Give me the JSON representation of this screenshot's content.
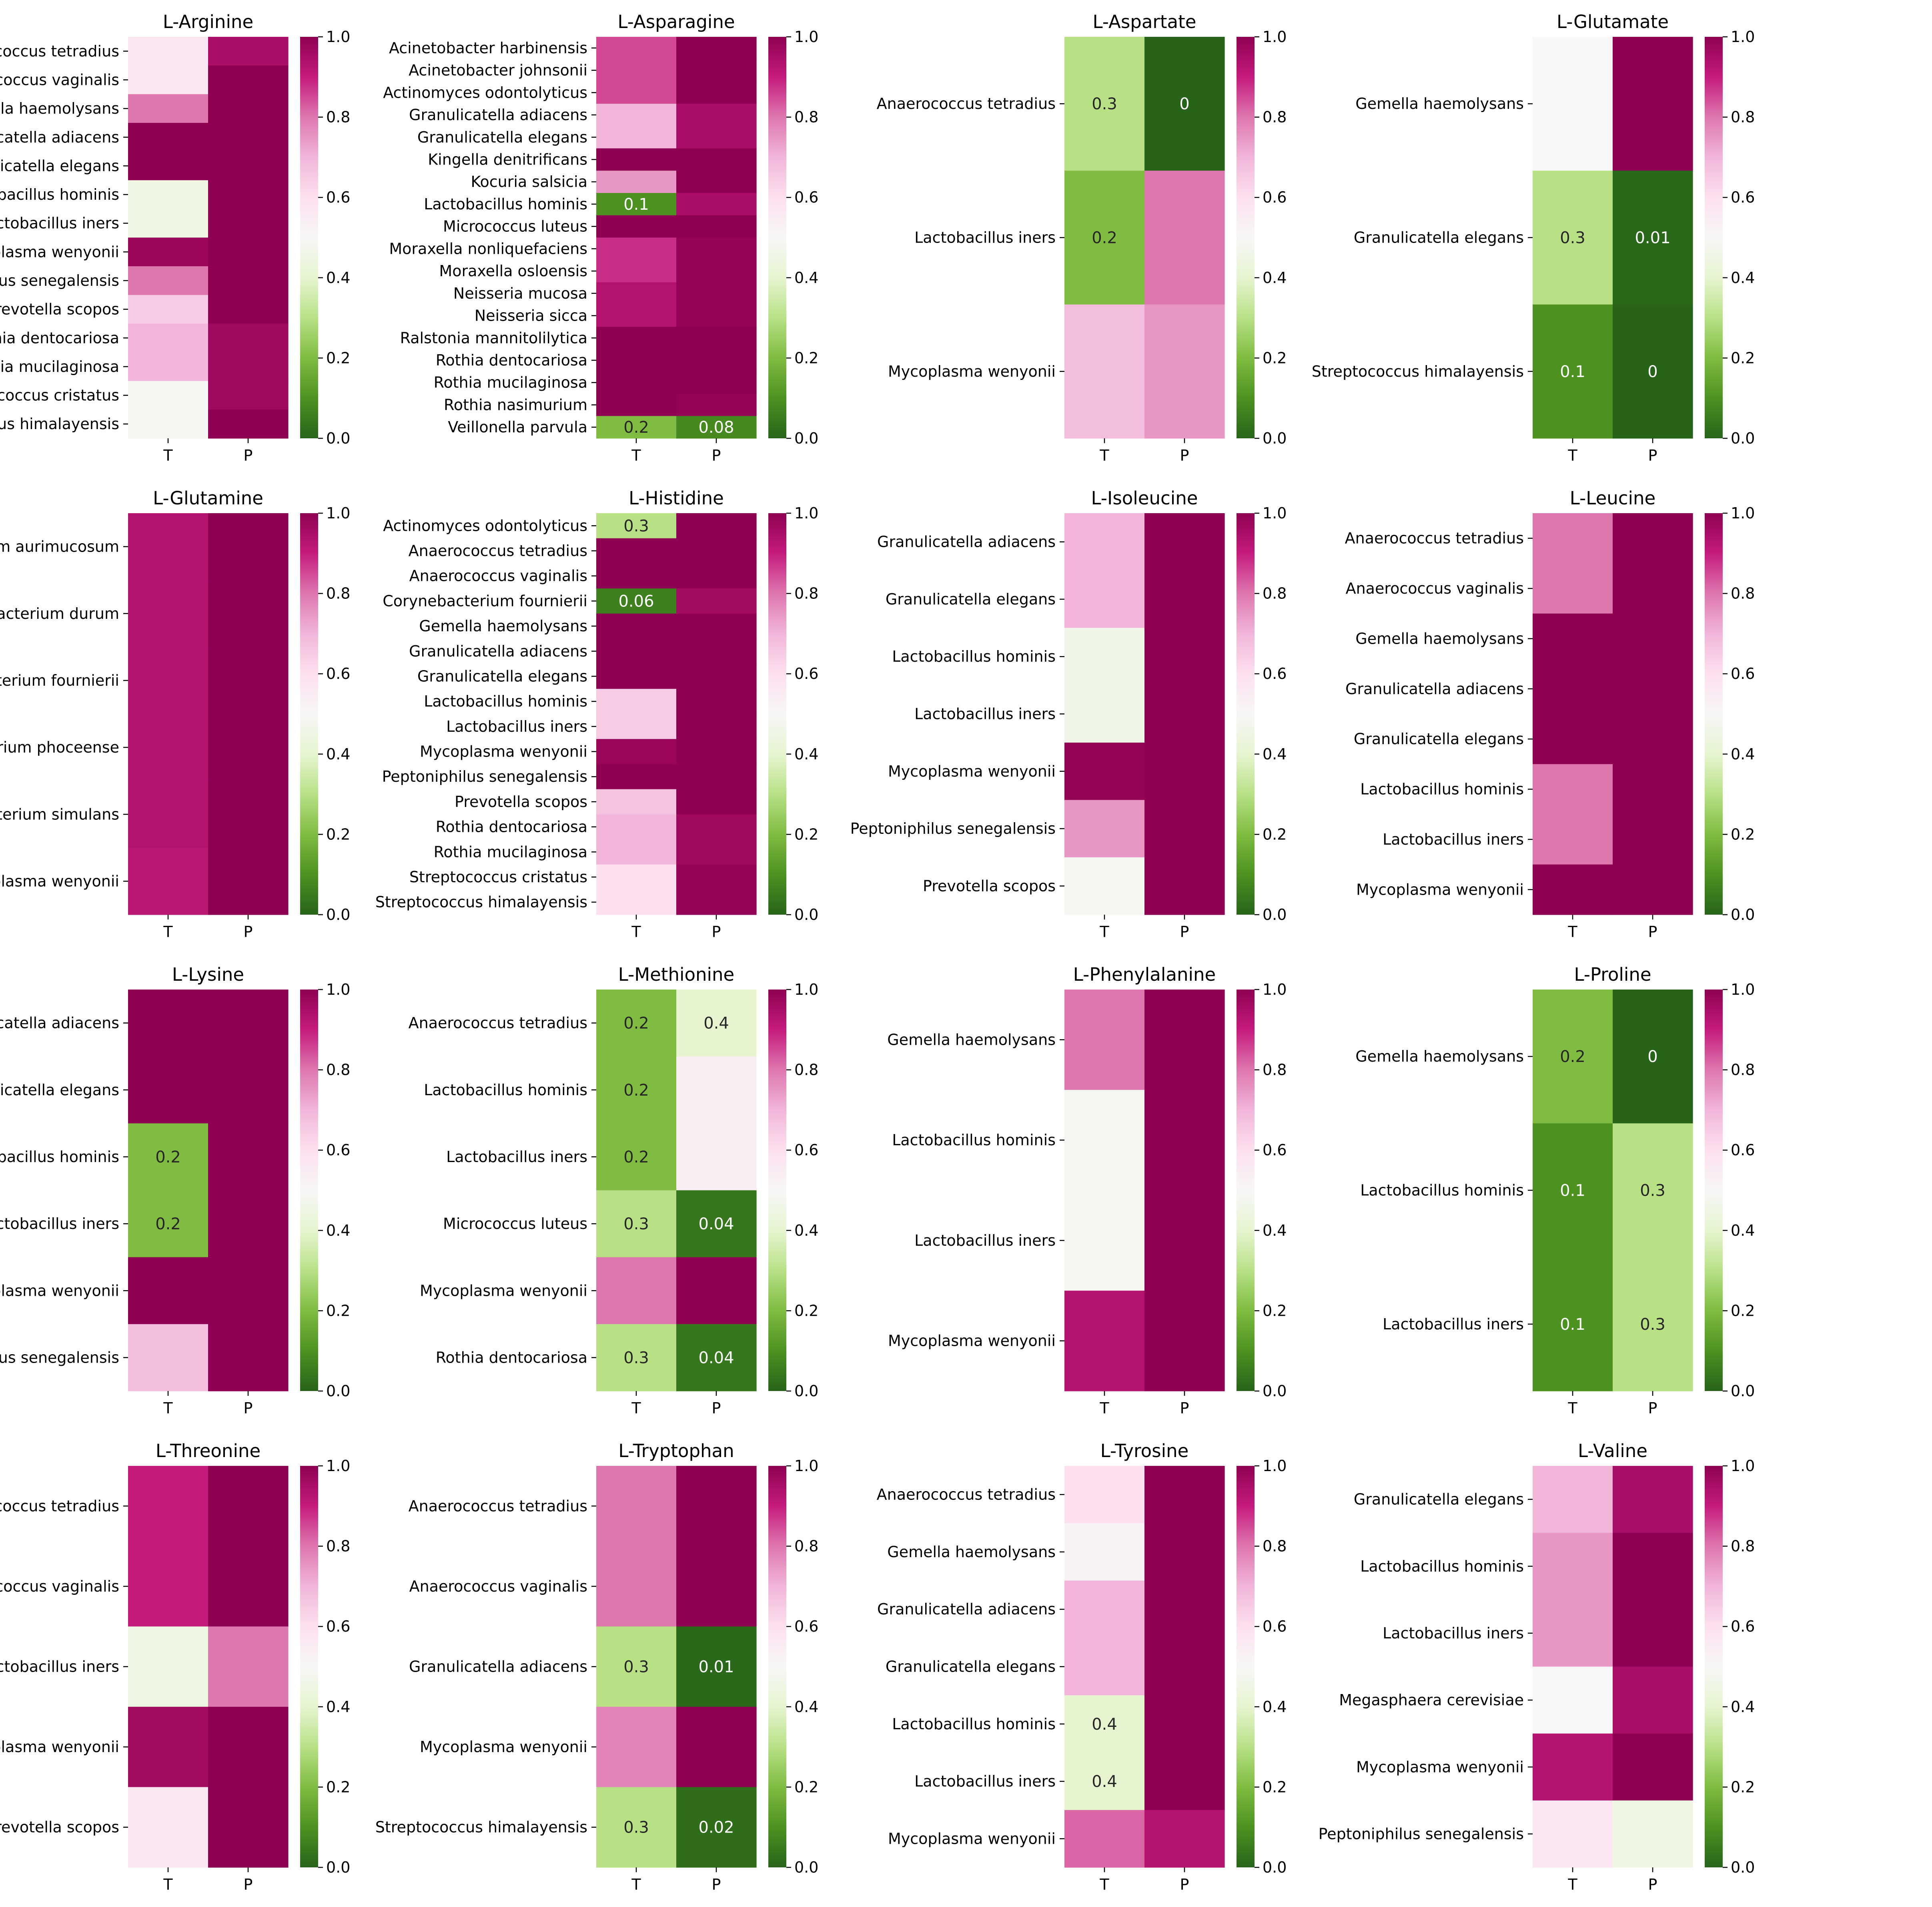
{
  "chart_data": [
    {
      "type": "heatmap",
      "title": "L-Arginine",
      "columns": [
        "T",
        "P"
      ],
      "rows": [
        "Anaerococcus tetradius",
        "Anaerococcus vaginalis",
        "Gemella haemolysans",
        "Granulicatella adiacens",
        "Granulicatella elegans",
        "Lactobacillus hominis",
        "Lactobacillus iners",
        "Mycoplasma wenyonii",
        "Peptoniphilus senegalensis",
        "Prevotella scopos",
        "Rothia dentocariosa",
        "Rothia mucilaginosa",
        "Streptococcus cristatus",
        "Streptococcus himalayensis"
      ],
      "values": [
        [
          0.57,
          0.95
        ],
        [
          0.57,
          1.0
        ],
        [
          0.8,
          1.0
        ],
        [
          1.0,
          1.0
        ],
        [
          1.0,
          1.0
        ],
        [
          0.45,
          1.0
        ],
        [
          0.45,
          1.0
        ],
        [
          0.98,
          1.0
        ],
        [
          0.8,
          1.0
        ],
        [
          0.65,
          1.0
        ],
        [
          0.7,
          0.97
        ],
        [
          0.7,
          0.97
        ],
        [
          0.49,
          0.97
        ],
        [
          0.49,
          1.0
        ]
      ],
      "annotations": [],
      "colorbar": {
        "min": 0.0,
        "max": 1.0,
        "ticks": [
          "0.0",
          "0.2",
          "0.4",
          "0.6",
          "0.8",
          "1.0"
        ]
      }
    },
    {
      "type": "heatmap",
      "title": "L-Asparagine",
      "columns": [
        "T",
        "P"
      ],
      "rows": [
        "Acinetobacter harbinensis",
        "Acinetobacter johnsonii",
        "Actinomyces odontolyticus",
        "Granulicatella adiacens",
        "Granulicatella elegans",
        "Kingella denitrificans",
        "Kocuria salsicia",
        "Lactobacillus hominis",
        "Micrococcus luteus",
        "Moraxella nonliquefaciens",
        "Moraxella osloensis",
        "Neisseria mucosa",
        "Neisseria sicca",
        "Ralstonia mannitolilytica",
        "Rothia dentocariosa",
        "Rothia mucilaginosa",
        "Rothia nasimurium",
        "Veillonella parvula"
      ],
      "values": [
        [
          0.85,
          1.0
        ],
        [
          0.85,
          1.0
        ],
        [
          0.85,
          1.0
        ],
        [
          0.7,
          0.95
        ],
        [
          0.7,
          0.95
        ],
        [
          1.0,
          1.0
        ],
        [
          0.75,
          1.0
        ],
        [
          0.1,
          0.95
        ],
        [
          1.0,
          1.0
        ],
        [
          0.88,
          0.99
        ],
        [
          0.88,
          0.99
        ],
        [
          0.93,
          0.99
        ],
        [
          0.93,
          0.99
        ],
        [
          1.0,
          1.0
        ],
        [
          1.0,
          1.0
        ],
        [
          1.0,
          1.0
        ],
        [
          1.0,
          0.99
        ],
        [
          0.2,
          0.08
        ]
      ],
      "annotations": [
        {
          "row": 7,
          "col": 0,
          "text": "0.1"
        },
        {
          "row": 17,
          "col": 0,
          "text": "0.2"
        },
        {
          "row": 17,
          "col": 1,
          "text": "0.08"
        }
      ],
      "colorbar": {
        "min": 0.0,
        "max": 1.0,
        "ticks": [
          "0.0",
          "0.2",
          "0.4",
          "0.6",
          "0.8",
          "1.0"
        ]
      }
    },
    {
      "type": "heatmap",
      "title": "L-Aspartate",
      "columns": [
        "T",
        "P"
      ],
      "rows": [
        "Anaerococcus tetradius",
        "Lactobacillus iners",
        "Mycoplasma wenyonii"
      ],
      "values": [
        [
          0.3,
          0.0
        ],
        [
          0.2,
          0.8
        ],
        [
          0.68,
          0.75
        ]
      ],
      "annotations": [
        {
          "row": 0,
          "col": 0,
          "text": "0.3"
        },
        {
          "row": 0,
          "col": 1,
          "text": "0"
        },
        {
          "row": 1,
          "col": 0,
          "text": "0.2"
        }
      ],
      "colorbar": {
        "min": 0.0,
        "max": 1.0,
        "ticks": [
          "0.0",
          "0.2",
          "0.4",
          "0.6",
          "0.8",
          "1.0"
        ]
      }
    },
    {
      "type": "heatmap",
      "title": "L-Glutamate",
      "columns": [
        "T",
        "P"
      ],
      "rows": [
        "Gemella haemolysans",
        "Granulicatella elegans",
        "Streptococcus himalayensis"
      ],
      "values": [
        [
          0.5,
          1.0
        ],
        [
          0.3,
          0.01
        ],
        [
          0.1,
          0.0
        ]
      ],
      "annotations": [
        {
          "row": 1,
          "col": 0,
          "text": "0.3"
        },
        {
          "row": 1,
          "col": 1,
          "text": "0.01"
        },
        {
          "row": 2,
          "col": 0,
          "text": "0.1"
        },
        {
          "row": 2,
          "col": 1,
          "text": "0"
        }
      ],
      "colorbar": {
        "min": 0.0,
        "max": 1.0,
        "ticks": [
          "0.0",
          "0.2",
          "0.4",
          "0.6",
          "0.8",
          "1.0"
        ]
      }
    },
    {
      "type": "heatmap",
      "title": "L-Glutamine",
      "columns": [
        "T",
        "P"
      ],
      "rows": [
        "Corynebacterium aurimucosum",
        "Corynebacterium durum",
        "Corynebacterium fournierii",
        "Corynebacterium phoceense",
        "Corynebacterium simulans",
        "Mycoplasma wenyonii"
      ],
      "values": [
        [
          0.93,
          1.0
        ],
        [
          0.93,
          1.0
        ],
        [
          0.93,
          1.0
        ],
        [
          0.93,
          1.0
        ],
        [
          0.93,
          1.0
        ],
        [
          0.92,
          1.0
        ]
      ],
      "annotations": [],
      "colorbar": {
        "min": 0.0,
        "max": 1.0,
        "ticks": [
          "0.0",
          "0.2",
          "0.4",
          "0.6",
          "0.8",
          "1.0"
        ]
      }
    },
    {
      "type": "heatmap",
      "title": "L-Histidine",
      "columns": [
        "T",
        "P"
      ],
      "rows": [
        "Actinomyces odontolyticus",
        "Anaerococcus tetradius",
        "Anaerococcus vaginalis",
        "Corynebacterium fournierii",
        "Gemella haemolysans",
        "Granulicatella adiacens",
        "Granulicatella elegans",
        "Lactobacillus hominis",
        "Lactobacillus iners",
        "Mycoplasma wenyonii",
        "Peptoniphilus senegalensis",
        "Prevotella scopos",
        "Rothia dentocariosa",
        "Rothia mucilaginosa",
        "Streptococcus cristatus",
        "Streptococcus himalayensis"
      ],
      "values": [
        [
          0.3,
          1.0
        ],
        [
          1.0,
          1.0
        ],
        [
          1.0,
          1.0
        ],
        [
          0.06,
          0.96
        ],
        [
          1.0,
          1.0
        ],
        [
          1.0,
          1.0
        ],
        [
          1.0,
          1.0
        ],
        [
          0.65,
          1.0
        ],
        [
          0.65,
          1.0
        ],
        [
          0.98,
          1.0
        ],
        [
          1.0,
          1.0
        ],
        [
          0.67,
          1.0
        ],
        [
          0.7,
          0.97
        ],
        [
          0.7,
          0.97
        ],
        [
          0.6,
          0.99
        ],
        [
          0.6,
          0.99
        ]
      ],
      "annotations": [
        {
          "row": 0,
          "col": 0,
          "text": "0.3"
        },
        {
          "row": 3,
          "col": 0,
          "text": "0.06"
        }
      ],
      "colorbar": {
        "min": 0.0,
        "max": 1.0,
        "ticks": [
          "0.0",
          "0.2",
          "0.4",
          "0.6",
          "0.8",
          "1.0"
        ]
      }
    },
    {
      "type": "heatmap",
      "title": "L-Isoleucine",
      "columns": [
        "T",
        "P"
      ],
      "rows": [
        "Granulicatella adiacens",
        "Granulicatella elegans",
        "Lactobacillus hominis",
        "Lactobacillus iners",
        "Mycoplasma wenyonii",
        "Peptoniphilus senegalensis",
        "Prevotella scopos"
      ],
      "values": [
        [
          0.7,
          1.0
        ],
        [
          0.7,
          1.0
        ],
        [
          0.46,
          1.0
        ],
        [
          0.46,
          1.0
        ],
        [
          0.99,
          1.0
        ],
        [
          0.75,
          1.0
        ],
        [
          0.49,
          1.0
        ]
      ],
      "annotations": [],
      "colorbar": {
        "min": 0.0,
        "max": 1.0,
        "ticks": [
          "0.0",
          "0.2",
          "0.4",
          "0.6",
          "0.8",
          "1.0"
        ]
      }
    },
    {
      "type": "heatmap",
      "title": "L-Leucine",
      "columns": [
        "T",
        "P"
      ],
      "rows": [
        "Anaerococcus tetradius",
        "Anaerococcus vaginalis",
        "Gemella haemolysans",
        "Granulicatella adiacens",
        "Granulicatella elegans",
        "Lactobacillus hominis",
        "Lactobacillus iners",
        "Mycoplasma wenyonii"
      ],
      "values": [
        [
          0.8,
          1.0
        ],
        [
          0.8,
          1.0
        ],
        [
          1.0,
          1.0
        ],
        [
          1.0,
          1.0
        ],
        [
          1.0,
          1.0
        ],
        [
          0.8,
          1.0
        ],
        [
          0.8,
          1.0
        ],
        [
          1.0,
          1.0
        ]
      ],
      "annotations": [],
      "colorbar": {
        "min": 0.0,
        "max": 1.0,
        "ticks": [
          "0.0",
          "0.2",
          "0.4",
          "0.6",
          "0.8",
          "1.0"
        ]
      }
    },
    {
      "type": "heatmap",
      "title": "L-Lysine",
      "columns": [
        "T",
        "P"
      ],
      "rows": [
        "Granulicatella adiacens",
        "Granulicatella elegans",
        "Lactobacillus hominis",
        "Lactobacillus iners",
        "Mycoplasma wenyonii",
        "Peptoniphilus senegalensis"
      ],
      "values": [
        [
          1.0,
          1.0
        ],
        [
          1.0,
          1.0
        ],
        [
          0.2,
          1.0
        ],
        [
          0.2,
          1.0
        ],
        [
          1.0,
          1.0
        ],
        [
          0.68,
          1.0
        ]
      ],
      "annotations": [
        {
          "row": 2,
          "col": 0,
          "text": "0.2"
        },
        {
          "row": 3,
          "col": 0,
          "text": "0.2"
        }
      ],
      "colorbar": {
        "min": 0.0,
        "max": 1.0,
        "ticks": [
          "0.0",
          "0.2",
          "0.4",
          "0.6",
          "0.8",
          "1.0"
        ]
      }
    },
    {
      "type": "heatmap",
      "title": "L-Methionine",
      "columns": [
        "T",
        "P"
      ],
      "rows": [
        "Anaerococcus tetradius",
        "Lactobacillus hominis",
        "Lactobacillus iners",
        "Micrococcus luteus",
        "Mycoplasma wenyonii",
        "Rothia dentocariosa"
      ],
      "values": [
        [
          0.2,
          0.4
        ],
        [
          0.2,
          0.54
        ],
        [
          0.2,
          0.54
        ],
        [
          0.3,
          0.04
        ],
        [
          0.8,
          1.0
        ],
        [
          0.3,
          0.04
        ]
      ],
      "annotations": [
        {
          "row": 0,
          "col": 0,
          "text": "0.2"
        },
        {
          "row": 0,
          "col": 1,
          "text": "0.4"
        },
        {
          "row": 1,
          "col": 0,
          "text": "0.2"
        },
        {
          "row": 2,
          "col": 0,
          "text": "0.2"
        },
        {
          "row": 3,
          "col": 0,
          "text": "0.3"
        },
        {
          "row": 3,
          "col": 1,
          "text": "0.04"
        },
        {
          "row": 5,
          "col": 0,
          "text": "0.3"
        },
        {
          "row": 5,
          "col": 1,
          "text": "0.04"
        }
      ],
      "colorbar": {
        "min": 0.0,
        "max": 1.0,
        "ticks": [
          "0.0",
          "0.2",
          "0.4",
          "0.6",
          "0.8",
          "1.0"
        ]
      }
    },
    {
      "type": "heatmap",
      "title": "L-Phenylalanine",
      "columns": [
        "T",
        "P"
      ],
      "rows": [
        "Gemella haemolysans",
        "Lactobacillus hominis",
        "Lactobacillus iners",
        "Mycoplasma wenyonii"
      ],
      "values": [
        [
          0.8,
          1.0
        ],
        [
          0.48,
          1.0
        ],
        [
          0.48,
          1.0
        ],
        [
          0.93,
          1.0
        ]
      ],
      "annotations": [],
      "colorbar": {
        "min": 0.0,
        "max": 1.0,
        "ticks": [
          "0.0",
          "0.2",
          "0.4",
          "0.6",
          "0.8",
          "1.0"
        ]
      }
    },
    {
      "type": "heatmap",
      "title": "L-Proline",
      "columns": [
        "T",
        "P"
      ],
      "rows": [
        "Gemella haemolysans",
        "Lactobacillus hominis",
        "Lactobacillus iners"
      ],
      "values": [
        [
          0.2,
          0.0
        ],
        [
          0.1,
          0.3
        ],
        [
          0.1,
          0.3
        ]
      ],
      "annotations": [
        {
          "row": 0,
          "col": 0,
          "text": "0.2"
        },
        {
          "row": 0,
          "col": 1,
          "text": "0"
        },
        {
          "row": 1,
          "col": 0,
          "text": "0.1"
        },
        {
          "row": 1,
          "col": 1,
          "text": "0.3"
        },
        {
          "row": 2,
          "col": 0,
          "text": "0.1"
        },
        {
          "row": 2,
          "col": 1,
          "text": "0.3"
        }
      ],
      "colorbar": {
        "min": 0.0,
        "max": 1.0,
        "ticks": [
          "0.0",
          "0.2",
          "0.4",
          "0.6",
          "0.8",
          "1.0"
        ]
      }
    },
    {
      "type": "heatmap",
      "title": "L-Threonine",
      "columns": [
        "T",
        "P"
      ],
      "rows": [
        "Anaerococcus tetradius",
        "Anaerococcus vaginalis",
        "Lactobacillus iners",
        "Mycoplasma wenyonii",
        "Prevotella scopos"
      ],
      "values": [
        [
          0.9,
          1.0
        ],
        [
          0.9,
          1.0
        ],
        [
          0.44,
          0.8
        ],
        [
          0.96,
          1.0
        ],
        [
          0.57,
          1.0
        ]
      ],
      "annotations": [],
      "colorbar": {
        "min": 0.0,
        "max": 1.0,
        "ticks": [
          "0.0",
          "0.2",
          "0.4",
          "0.6",
          "0.8",
          "1.0"
        ]
      }
    },
    {
      "type": "heatmap",
      "title": "L-Tryptophan",
      "columns": [
        "T",
        "P"
      ],
      "rows": [
        "Anaerococcus tetradius",
        "Anaerococcus vaginalis",
        "Granulicatella adiacens",
        "Mycoplasma wenyonii",
        "Streptococcus himalayensis"
      ],
      "values": [
        [
          0.8,
          1.0
        ],
        [
          0.8,
          1.0
        ],
        [
          0.3,
          0.01
        ],
        [
          0.78,
          1.0
        ],
        [
          0.3,
          0.02
        ]
      ],
      "annotations": [
        {
          "row": 2,
          "col": 0,
          "text": "0.3"
        },
        {
          "row": 2,
          "col": 1,
          "text": "0.01"
        },
        {
          "row": 4,
          "col": 0,
          "text": "0.3"
        },
        {
          "row": 4,
          "col": 1,
          "text": "0.02"
        }
      ],
      "colorbar": {
        "min": 0.0,
        "max": 1.0,
        "ticks": [
          "0.0",
          "0.2",
          "0.4",
          "0.6",
          "0.8",
          "1.0"
        ]
      }
    },
    {
      "type": "heatmap",
      "title": "L-Tyrosine",
      "columns": [
        "T",
        "P"
      ],
      "rows": [
        "Anaerococcus tetradius",
        "Gemella haemolysans",
        "Granulicatella adiacens",
        "Granulicatella elegans",
        "Lactobacillus hominis",
        "Lactobacillus iners",
        "Mycoplasma wenyonii"
      ],
      "values": [
        [
          0.6,
          1.0
        ],
        [
          0.52,
          1.0
        ],
        [
          0.7,
          1.0
        ],
        [
          0.7,
          1.0
        ],
        [
          0.4,
          1.0
        ],
        [
          0.4,
          1.0
        ],
        [
          0.82,
          0.93
        ]
      ],
      "annotations": [
        {
          "row": 4,
          "col": 0,
          "text": "0.4"
        },
        {
          "row": 5,
          "col": 0,
          "text": "0.4"
        }
      ],
      "colorbar": {
        "min": 0.0,
        "max": 1.0,
        "ticks": [
          "0.0",
          "0.2",
          "0.4",
          "0.6",
          "0.8",
          "1.0"
        ]
      }
    },
    {
      "type": "heatmap",
      "title": "L-Valine",
      "columns": [
        "T",
        "P"
      ],
      "rows": [
        "Granulicatella elegans",
        "Lactobacillus hominis",
        "Lactobacillus iners",
        "Megasphaera cerevisiae",
        "Mycoplasma wenyonii",
        "Peptoniphilus senegalensis"
      ],
      "values": [
        [
          0.7,
          0.95
        ],
        [
          0.75,
          1.0
        ],
        [
          0.75,
          1.0
        ],
        [
          0.5,
          0.95
        ],
        [
          0.93,
          1.0
        ],
        [
          0.57,
          0.45
        ]
      ],
      "annotations": [],
      "colorbar": {
        "min": 0.0,
        "max": 1.0,
        "ticks": [
          "0.0",
          "0.2",
          "0.4",
          "0.6",
          "0.8",
          "1.0"
        ]
      }
    }
  ]
}
